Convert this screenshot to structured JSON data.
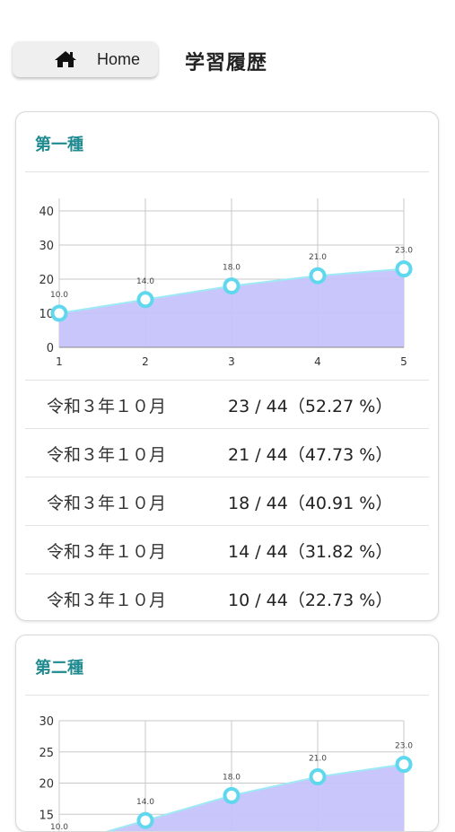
{
  "header": {
    "home_label": "Home",
    "home_icon": "home-icon",
    "title": "学習履歴"
  },
  "colors": {
    "accent_title": "#1f8a8f",
    "area_fill": "#c6c3fb",
    "line": "#9fe9f4",
    "point": "#5fd8ee"
  },
  "sections": [
    {
      "title": "第一種",
      "history": [
        {
          "date": "令和３年１０月",
          "score": "23 / 44（52.27 %）"
        },
        {
          "date": "令和３年１０月",
          "score": "21 / 44（47.73 %）"
        },
        {
          "date": "令和３年１０月",
          "score": "18 / 44（40.91 %）"
        },
        {
          "date": "令和３年１０月",
          "score": "14 / 44（31.82 %）"
        },
        {
          "date": "令和３年１０月",
          "score": "10 / 44（22.73 %）"
        }
      ]
    },
    {
      "title": "第二種",
      "history": []
    }
  ],
  "chart_data": [
    {
      "type": "area",
      "x": [
        1,
        2,
        3,
        4,
        5
      ],
      "values": [
        10.0,
        14.0,
        18.0,
        21.0,
        23.0
      ],
      "point_labels": [
        "10.0",
        "14.0",
        "18.0",
        "21.0",
        "23.0"
      ],
      "x_ticks": [
        "1",
        "2",
        "3",
        "4",
        "5"
      ],
      "y_ticks": [
        "0",
        "10",
        "20",
        "30",
        "40"
      ],
      "ylim": [
        0,
        40
      ],
      "grid": true
    },
    {
      "type": "area",
      "x": [
        1,
        2,
        3,
        4,
        5
      ],
      "values": [
        10.0,
        14.0,
        18.0,
        21.0,
        23.0
      ],
      "point_labels": [
        "10.0",
        "14.0",
        "18.0",
        "21.0",
        "23.0"
      ],
      "y_ticks": [
        "15",
        "20",
        "25",
        "30"
      ],
      "ylim": [
        10,
        30
      ],
      "grid": true
    }
  ]
}
